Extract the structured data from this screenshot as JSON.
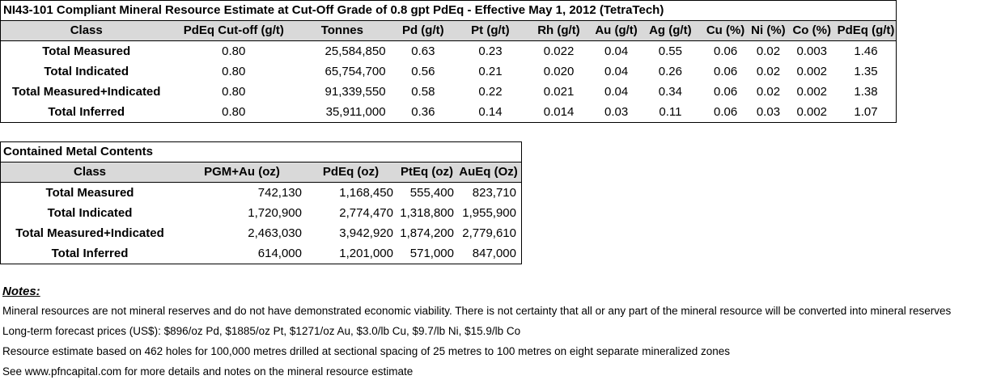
{
  "table1": {
    "title": "NI43-101 Compliant Mineral Resource Estimate at Cut-Off Grade of 0.8 gpt PdEq - Effective May 1, 2012 (TetraTech)",
    "headers": [
      "Class",
      "PdEq Cut-off (g/t)",
      "Tonnes",
      "Pd (g/t)",
      "Pt (g/t)",
      "Rh (g/t)",
      "Au (g/t)",
      "Ag (g/t)",
      "Cu (%)",
      "Ni (%)",
      "Co (%)",
      "PdEq (g/t)"
    ],
    "rows": [
      [
        "Total Measured",
        "0.80",
        "25,584,850",
        "0.63",
        "0.23",
        "0.022",
        "0.04",
        "0.55",
        "0.06",
        "0.02",
        "0.003",
        "1.46"
      ],
      [
        "Total Indicated",
        "0.80",
        "65,754,700",
        "0.56",
        "0.21",
        "0.020",
        "0.04",
        "0.26",
        "0.06",
        "0.02",
        "0.002",
        "1.35"
      ],
      [
        "Total Measured+Indicated",
        "0.80",
        "91,339,550",
        "0.58",
        "0.22",
        "0.021",
        "0.04",
        "0.34",
        "0.06",
        "0.02",
        "0.002",
        "1.38"
      ],
      [
        "Total Inferred",
        "0.80",
        "35,911,000",
        "0.36",
        "0.14",
        "0.014",
        "0.03",
        "0.11",
        "0.06",
        "0.03",
        "0.002",
        "1.07"
      ]
    ]
  },
  "table2": {
    "title": "Contained Metal Contents",
    "headers": [
      "Class",
      "PGM+Au (oz)",
      "PdEq (oz)",
      "PtEq (oz)",
      "AuEq (Oz)"
    ],
    "rows": [
      [
        "Total Measured",
        "742,130",
        "1,168,450",
        "555,400",
        "823,710"
      ],
      [
        "Total Indicated",
        "1,720,900",
        "2,774,470",
        "1,318,800",
        "1,955,900"
      ],
      [
        "Total Measured+Indicated",
        "2,463,030",
        "3,942,920",
        "1,874,200",
        "2,779,610"
      ],
      [
        "Total Inferred",
        "614,000",
        "1,201,000",
        "571,000",
        "847,000"
      ]
    ]
  },
  "notes": {
    "heading": "Notes:",
    "lines": [
      "Mineral resources are not mineral reserves and do not have demonstrated economic viability.  There is not certainty that all or any part of the mineral resource will be converted into mineral reserves",
      "Long-term forecast prices (US$): $896/oz Pd, $1885/oz Pt, $1271/oz Au, $3.0/lb Cu, $9.7/lb Ni, $15.9/lb Co",
      "Resource estimate based on 462 holes for 100,000 metres drilled at sectional spacing of 25 metres to 100 metres on eight separate mineralized zones",
      "See www.pfncapital.com for more details and notes on the mineral resource estimate"
    ]
  }
}
